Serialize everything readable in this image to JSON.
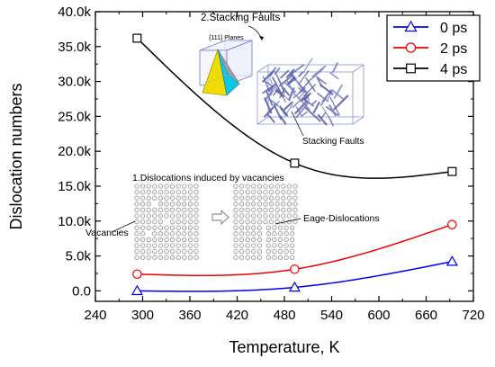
{
  "chart_data": {
    "type": "line",
    "xlabel": "Temperature, K",
    "ylabel": "Dislocation numbers",
    "xlim": [
      240,
      720
    ],
    "ylim": [
      -1500,
      40000
    ],
    "x_ticks": [
      240,
      300,
      360,
      420,
      480,
      540,
      600,
      660,
      720
    ],
    "x_tick_labels": [
      "240",
      "300",
      "360",
      "420",
      "480",
      "540",
      "600",
      "660",
      "720"
    ],
    "y_ticks": [
      0,
      5000,
      10000,
      15000,
      20000,
      25000,
      30000,
      35000,
      40000
    ],
    "y_tick_labels": [
      "0.0",
      "5.0k",
      "10.0k",
      "15.0k",
      "20.0k",
      "25.0k",
      "30.0k",
      "35.0k",
      "40.0k"
    ],
    "grid": false,
    "legend_position": "top-right",
    "series": [
      {
        "name": "0 ps",
        "color": "#0000ee",
        "marker": "triangle",
        "x": [
          293,
          493,
          693
        ],
        "y": [
          0,
          500,
          4200
        ]
      },
      {
        "name": "2 ps",
        "color": "#ee0000",
        "marker": "circle",
        "x": [
          293,
          493,
          693
        ],
        "y": [
          2400,
          3100,
          9500
        ]
      },
      {
        "name": "4 ps",
        "color": "#000000",
        "marker": "square",
        "x": [
          293,
          493,
          693
        ],
        "y": [
          36200,
          18300,
          17100
        ]
      }
    ],
    "annotations": {
      "stacking_title": "2.Stacking Faults",
      "planes": "{111} Planes",
      "stacking_label": "Stacking Faults",
      "dislocation_title": "1.Dislocations induced by vacancies",
      "vacancies": "Vacancies",
      "edge": "Eage-Dislocations"
    }
  }
}
